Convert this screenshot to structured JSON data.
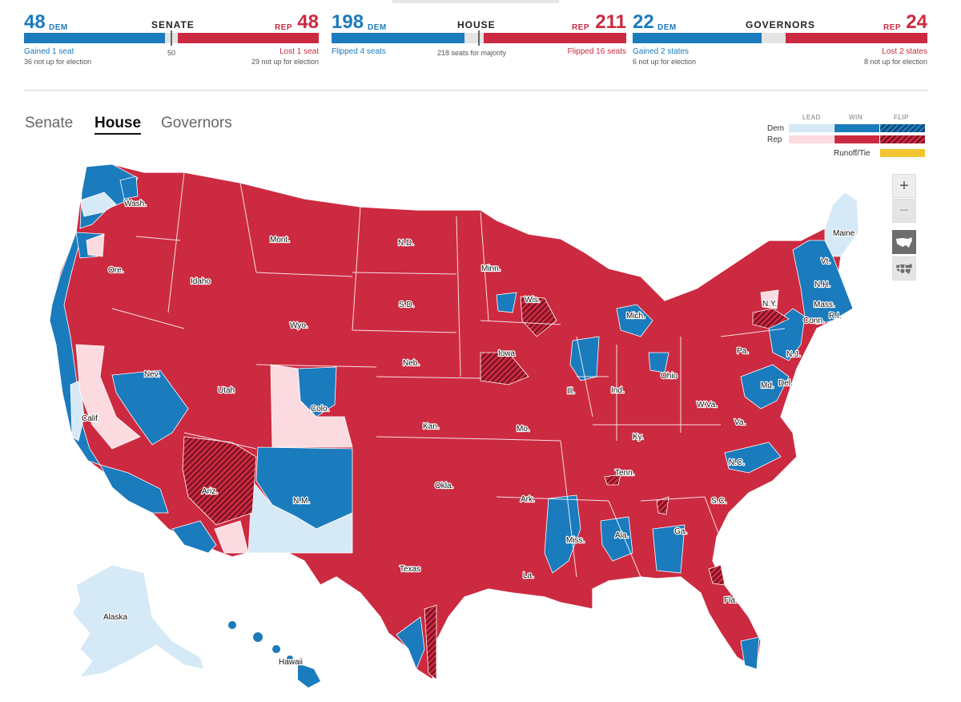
{
  "scoreboard": {
    "senate": {
      "title": "SENATE",
      "dem": "48",
      "dem_tag": "DEM",
      "rep": "48",
      "rep_tag": "REP",
      "mark_label": "50",
      "dem_note1": "Gained 1 seat",
      "dem_note2": "36 not up for election",
      "rep_note1": "Lost 1 seat",
      "rep_note2": "29 not up for election"
    },
    "house": {
      "title": "HOUSE",
      "dem": "198",
      "dem_tag": "DEM",
      "rep": "211",
      "rep_tag": "REP",
      "dem_note1": "Flipped 4 seats",
      "mid_note": "218 seats for majority",
      "rep_note1": "Flipped 16 seats"
    },
    "governors": {
      "title": "GOVERNORS",
      "dem": "22",
      "dem_tag": "DEM",
      "rep": "24",
      "rep_tag": "REP",
      "dem_note1": "Gained 2 states",
      "dem_note2": "6 not up for election",
      "rep_note1": "Lost 2 states",
      "rep_note2": "8 not up for election"
    }
  },
  "tabs": [
    {
      "label": "Senate",
      "active": false
    },
    {
      "label": "House",
      "active": true
    },
    {
      "label": "Governors",
      "active": false
    }
  ],
  "legend": {
    "col_lead": "LEAD",
    "col_win": "WIN",
    "col_flip": "FLIP",
    "row_dem": "Dem",
    "row_rep": "Rep",
    "runoff": "Runoff/Tie",
    "colors": {
      "dem_lead": "#d6e9f6",
      "dem_win": "#1a7bbd",
      "rep_lead": "#fcdbe0",
      "rep_win": "#cc2a40",
      "runoff": "#f1c532"
    }
  },
  "controls": {
    "zoom_in": "+",
    "zoom_out": "−",
    "view_us_icon": "us-map-icon",
    "view_district_icon": "district-map-icon"
  },
  "map": {
    "labels": [
      "Wash.",
      "Ore.",
      "Calif.",
      "Nev.",
      "Idaho",
      "Mont.",
      "Wyo.",
      "Utah",
      "Colo.",
      "Ariz.",
      "N.M.",
      "N.D.",
      "S.D.",
      "Neb.",
      "Kan.",
      "Okla.",
      "Texas",
      "Minn.",
      "Iowa",
      "Mo.",
      "Ark.",
      "La.",
      "Wis.",
      "Ill.",
      "Mich.",
      "Ind.",
      "Ohio",
      "Ky.",
      "Tenn.",
      "Miss.",
      "Ala.",
      "Ga.",
      "Fla.",
      "S.C.",
      "N.C.",
      "Va.",
      "W.Va.",
      "Pa.",
      "N.Y.",
      "Vt.",
      "N.H.",
      "Maine",
      "Mass.",
      "Conn.",
      "R.I.",
      "N.J.",
      "Del.",
      "Md.",
      "Alaska",
      "Hawaii"
    ]
  }
}
